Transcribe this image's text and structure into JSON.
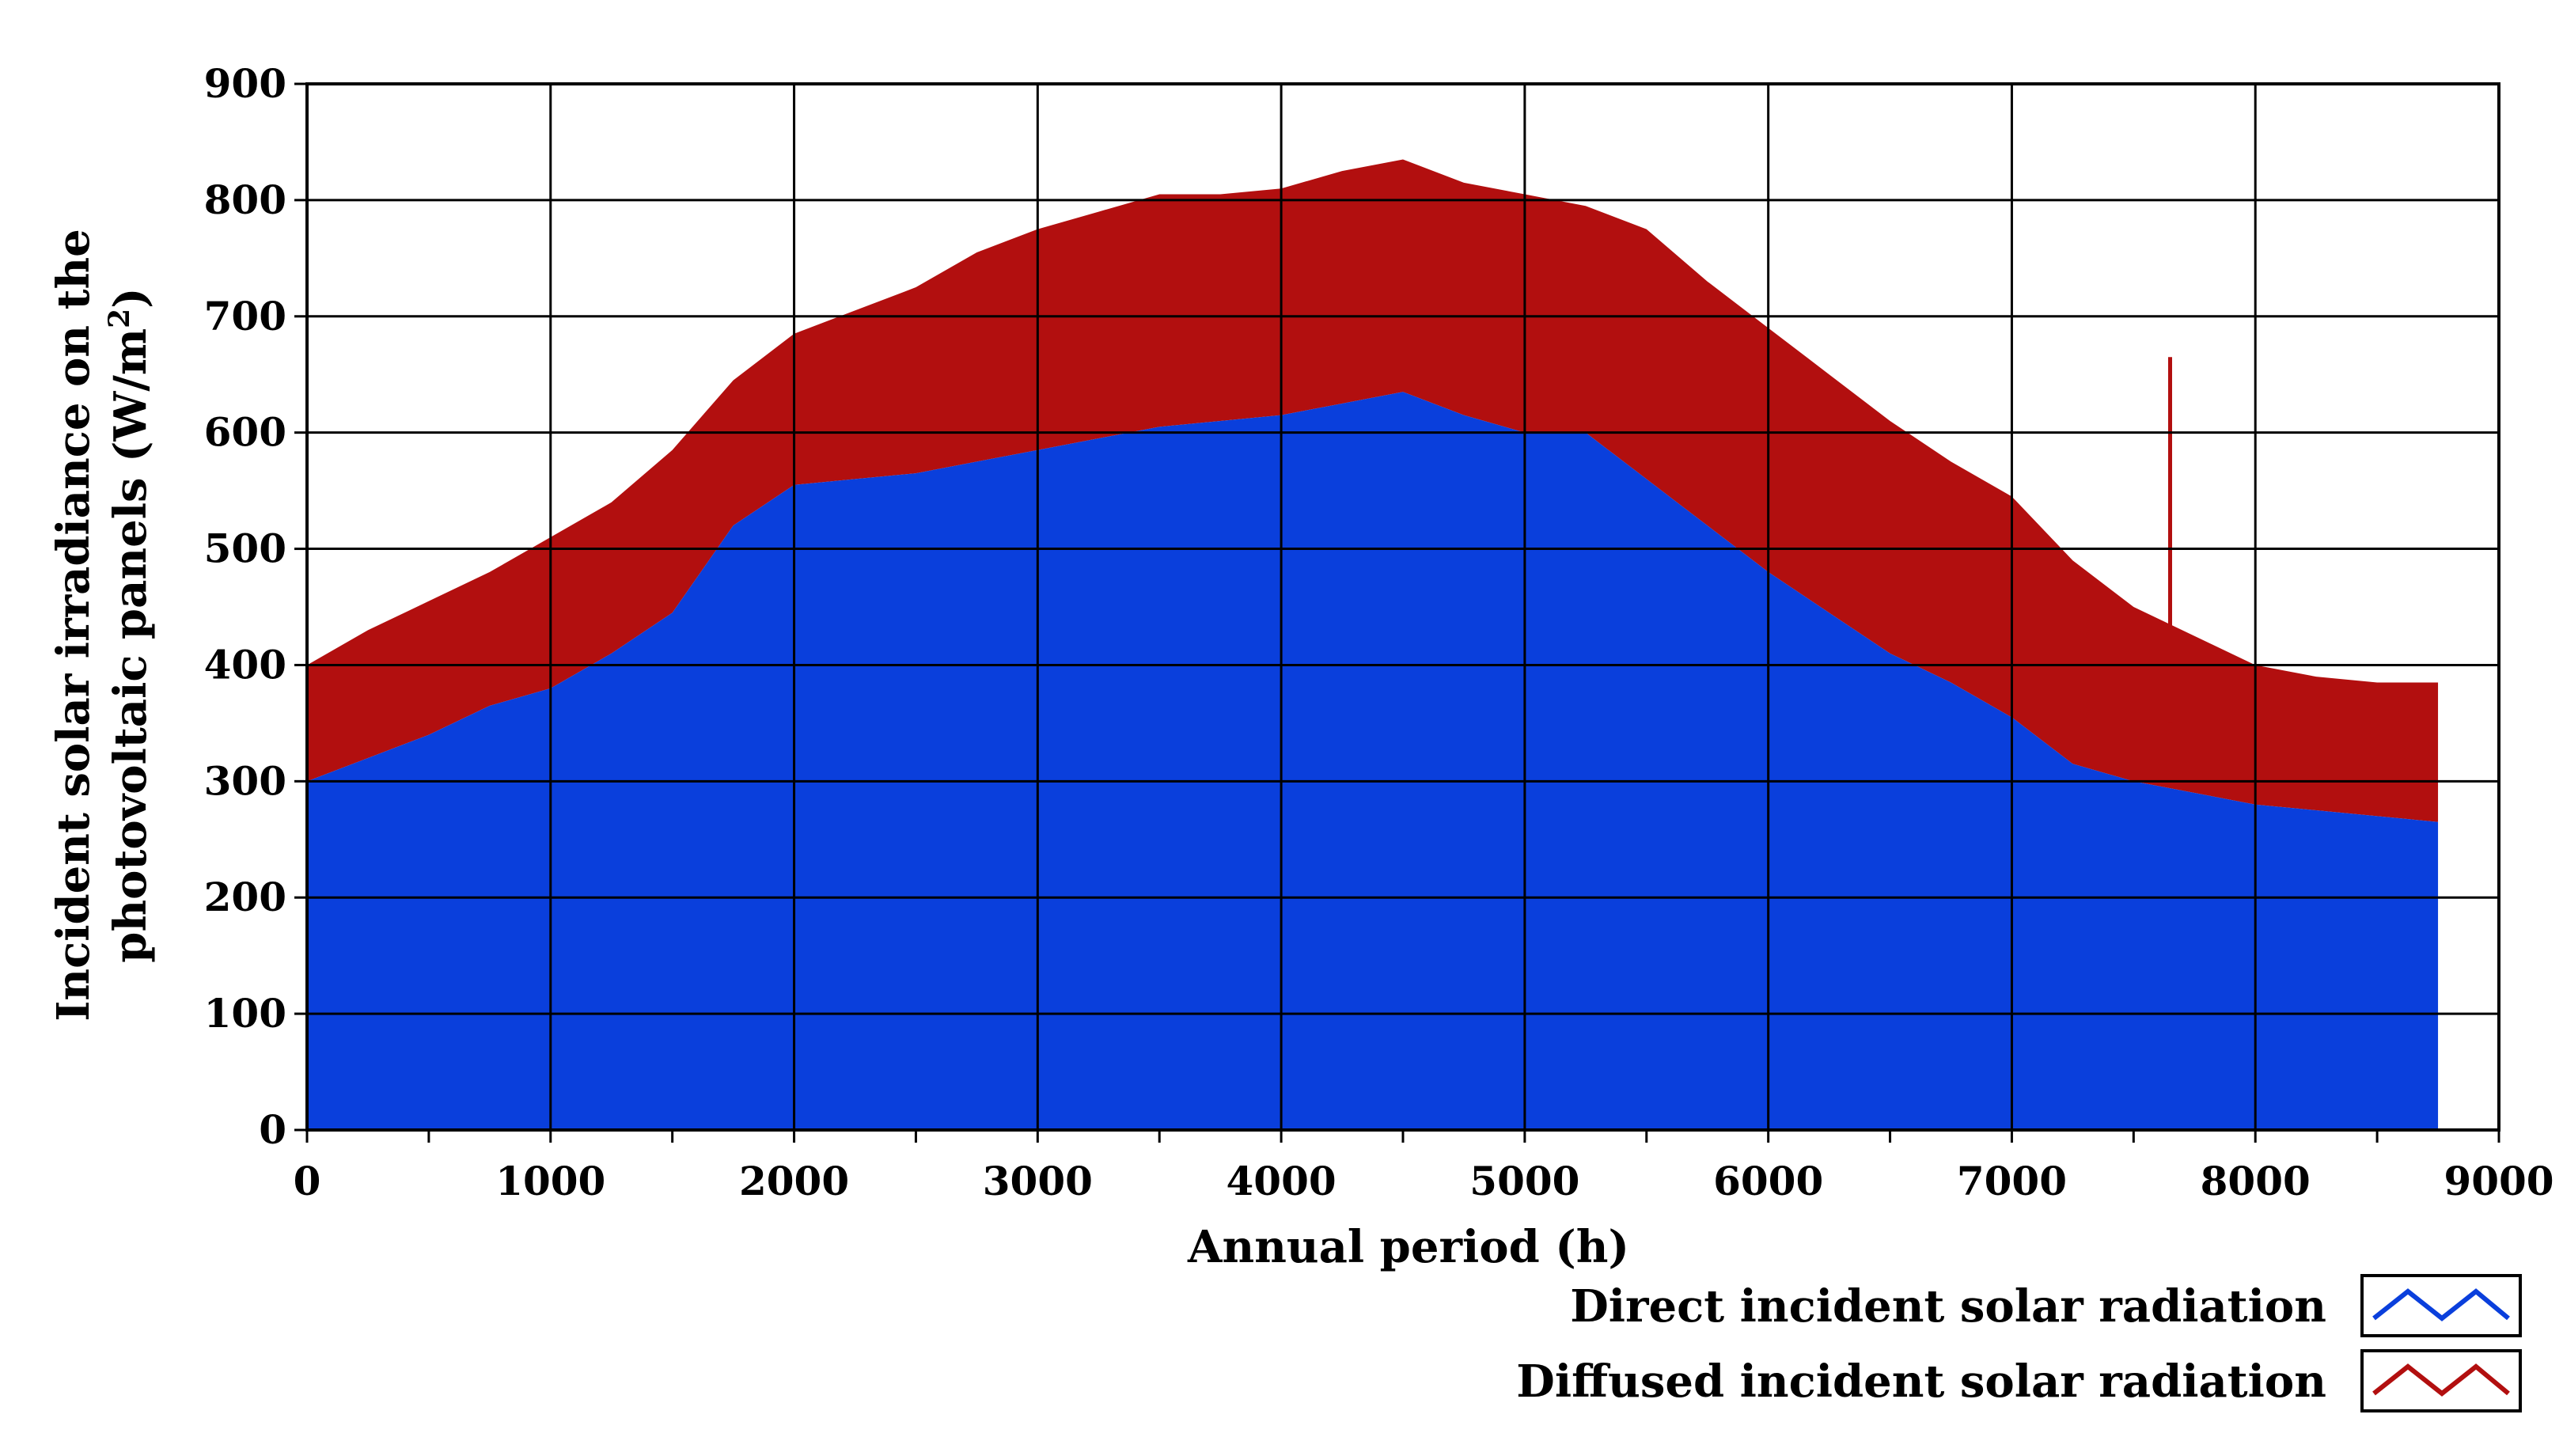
{
  "chart_data": {
    "type": "area",
    "stacked": true,
    "xlabel": "Annual period (h)",
    "ylabel_line1": "Incident solar irradiance on the",
    "ylabel_line2_prefix": "photovoltaic panels (W/m",
    "ylabel_line2_sup": "2",
    "ylabel_line2_suffix": ")",
    "xlim": [
      0,
      9000
    ],
    "ylim": [
      0,
      900
    ],
    "xticks": [
      "0",
      "1000",
      "2000",
      "3000",
      "4000",
      "5000",
      "6000",
      "7000",
      "8000",
      "9000"
    ],
    "yticks": [
      "0",
      "100",
      "200",
      "300",
      "400",
      "500",
      "600",
      "700",
      "800",
      "900"
    ],
    "grid": true,
    "legend_position": "bottom-right",
    "x": [
      0,
      250,
      500,
      750,
      1000,
      1250,
      1500,
      1750,
      2000,
      2250,
      2500,
      2750,
      3000,
      3250,
      3500,
      3750,
      4000,
      4250,
      4500,
      4750,
      5000,
      5250,
      5500,
      5750,
      6000,
      6250,
      6500,
      6750,
      7000,
      7250,
      7500,
      7750,
      8000,
      8250,
      8500,
      8750
    ],
    "series": [
      {
        "name": "Direct incident solar radiation",
        "color": "#0a3fdc",
        "values": [
          300,
          320,
          340,
          365,
          380,
          410,
          445,
          520,
          555,
          560,
          565,
          575,
          585,
          595,
          605,
          610,
          615,
          625,
          635,
          615,
          600,
          600,
          560,
          520,
          480,
          445,
          410,
          385,
          355,
          315,
          300,
          290,
          280,
          275,
          270,
          265
        ]
      },
      {
        "name": "Diffused incident solar radiation",
        "color": "#b20f0f",
        "values": [
          100,
          110,
          115,
          115,
          130,
          130,
          140,
          125,
          130,
          145,
          160,
          180,
          190,
          195,
          200,
          195,
          195,
          200,
          200,
          200,
          205,
          195,
          215,
          210,
          210,
          205,
          200,
          190,
          190,
          175,
          150,
          135,
          120,
          115,
          115,
          120
        ]
      }
    ],
    "annotations": [
      {
        "type": "spike",
        "series": "Diffused incident solar radiation",
        "x": 7650,
        "y": 665
      }
    ]
  }
}
